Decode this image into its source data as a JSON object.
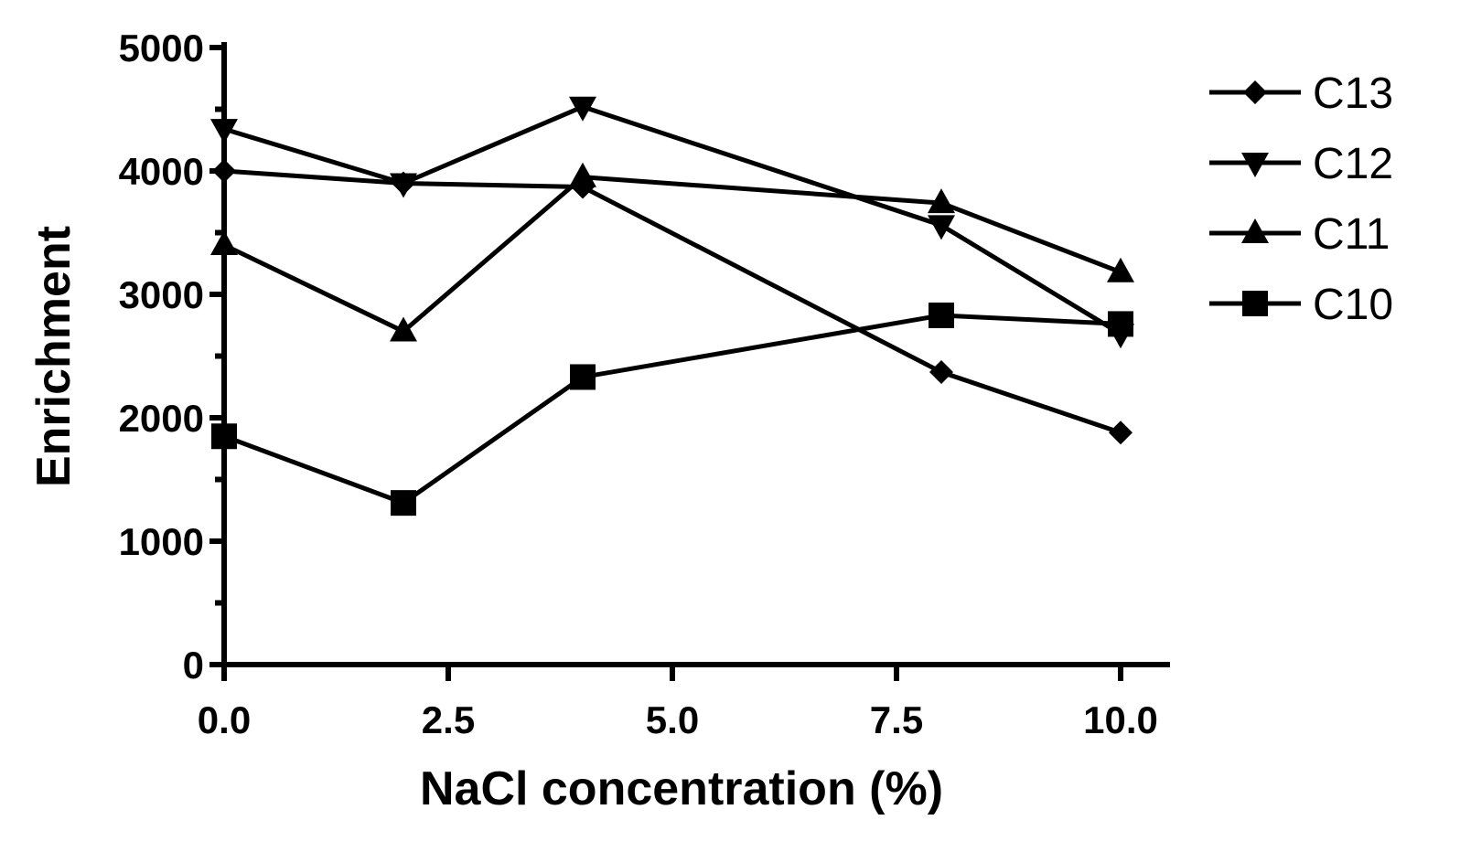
{
  "chart_data": {
    "type": "line",
    "title": "",
    "xlabel": "NaCl concentration (%)",
    "ylabel": "Enrichment",
    "xlim": [
      0,
      10.5
    ],
    "ylim": [
      0,
      5000
    ],
    "xticks": [
      "0.0",
      "2.5",
      "5.0",
      "7.5",
      "10.0"
    ],
    "xtick_values": [
      0,
      2.5,
      5,
      7.5,
      10
    ],
    "yticks": [
      "0",
      "1000",
      "2000",
      "3000",
      "4000",
      "5000"
    ],
    "ytick_values": [
      0,
      1000,
      2000,
      3000,
      4000,
      5000
    ],
    "x": [
      0,
      2,
      4,
      8,
      10
    ],
    "grid": false,
    "legend": "right",
    "series": [
      {
        "name": "C13",
        "marker": "diamond",
        "values": [
          4000,
          3900,
          3870,
          2370,
          1880
        ]
      },
      {
        "name": "C12",
        "marker": "triangle-down",
        "values": [
          4340,
          3900,
          4520,
          3560,
          2680
        ]
      },
      {
        "name": "C11",
        "marker": "triangle-up",
        "values": [
          3400,
          2700,
          3950,
          3740,
          3180
        ]
      },
      {
        "name": "C10",
        "marker": "square",
        "values": [
          1850,
          1310,
          2330,
          2830,
          2760
        ]
      }
    ]
  }
}
